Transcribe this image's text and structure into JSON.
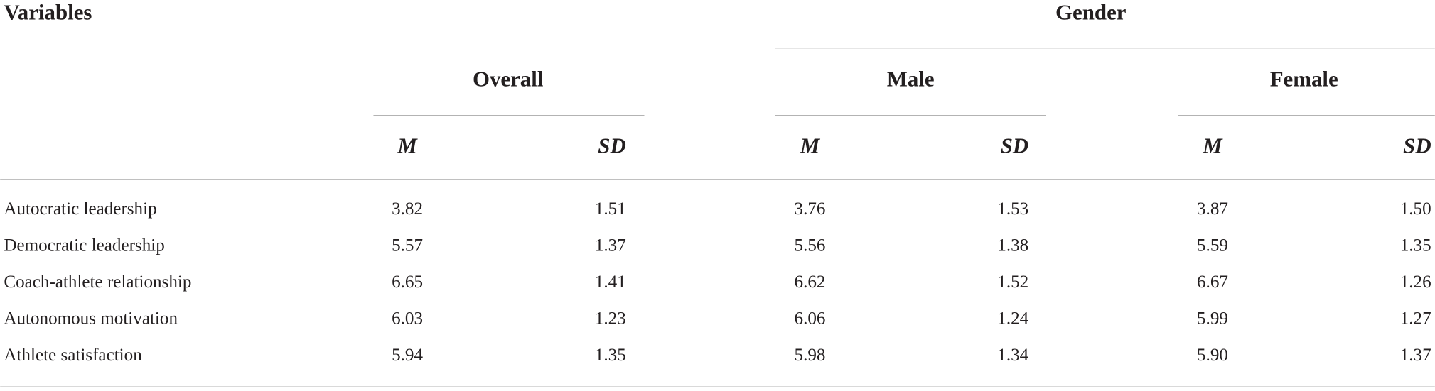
{
  "table": {
    "header": {
      "variables": "Variables",
      "gender": "Gender",
      "groups": [
        "Overall",
        "Male",
        "Female"
      ],
      "stats": [
        "M",
        "SD",
        "M",
        "SD",
        "M",
        "SD"
      ]
    },
    "rows": [
      [
        "Autocratic leadership",
        "3.82",
        "1.51",
        "3.76",
        "1.53",
        "3.87",
        "1.50"
      ],
      [
        "Democratic leadership",
        "5.57",
        "1.37",
        "5.56",
        "1.38",
        "5.59",
        "1.35"
      ],
      [
        "Coach-athlete relationship",
        "6.65",
        "1.41",
        "6.62",
        "1.52",
        "6.67",
        "1.26"
      ],
      [
        "Autonomous motivation",
        "6.03",
        "1.23",
        "6.06",
        "1.24",
        "5.99",
        "1.27"
      ],
      [
        "Athlete satisfaction",
        "5.94",
        "1.35",
        "5.98",
        "1.34",
        "5.90",
        "1.37"
      ]
    ]
  }
}
